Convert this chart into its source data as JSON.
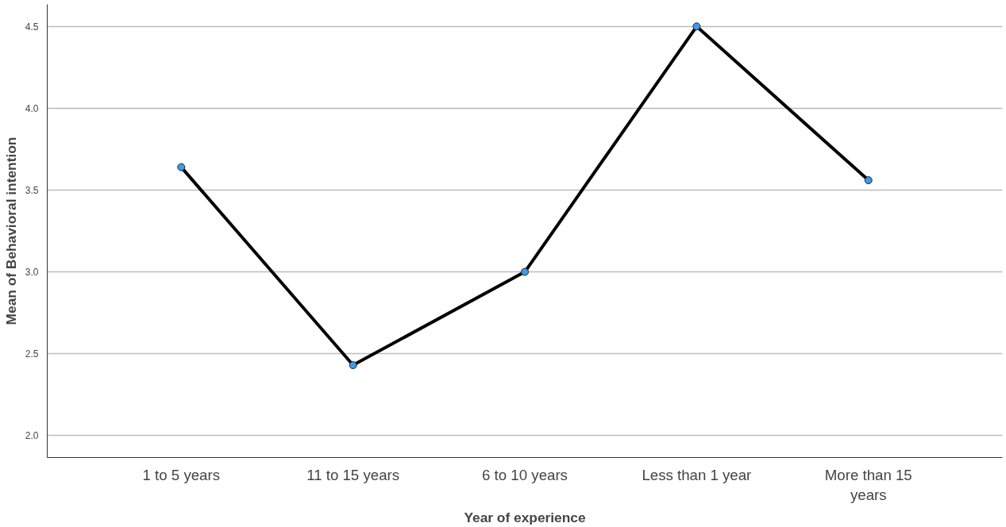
{
  "chart_data": {
    "type": "line",
    "xlabel": "Year of experience",
    "ylabel": "Mean of Behavioral intention",
    "categories": [
      "1 to 5 years",
      "11 to 15 years",
      "6 to 10 years",
      "Less than 1 year",
      "More than 15 years"
    ],
    "series": [
      {
        "color": "#000000",
        "values": [
          3.64,
          2.43,
          3.0,
          4.5,
          3.56
        ]
      }
    ],
    "marker": "circle",
    "line_style": "solid",
    "grid": "y",
    "ylim": [
      1.865,
      4.635
    ],
    "yticks": [
      {
        "value": 2.0,
        "label": "2.0"
      },
      {
        "value": 2.5,
        "label": "2.5"
      },
      {
        "value": 3.0,
        "label": "3.0"
      },
      {
        "value": 3.5,
        "label": "3.5"
      },
      {
        "value": 4.0,
        "label": "4.0"
      },
      {
        "value": 4.5,
        "label": "4.5"
      }
    ]
  }
}
